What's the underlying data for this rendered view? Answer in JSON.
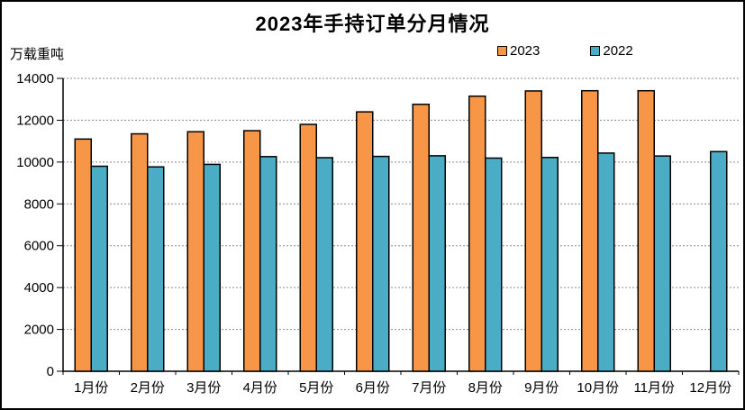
{
  "chart_data": {
    "type": "bar",
    "title": "2023年手持订单分月情况",
    "unit_label": "万载重吨",
    "categories": [
      "1月份",
      "2月份",
      "3月份",
      "4月份",
      "5月份",
      "6月份",
      "7月份",
      "8月份",
      "9月份",
      "10月份",
      "11月份",
      "12月份"
    ],
    "series": [
      {
        "name": "2023",
        "color": "#F79646",
        "values": [
          11100,
          11350,
          11450,
          11500,
          11800,
          12400,
          12760,
          13150,
          13400,
          13410,
          13410,
          null
        ]
      },
      {
        "name": "2022",
        "color": "#4BACC6",
        "values": [
          9800,
          9770,
          9890,
          10260,
          10210,
          10270,
          10300,
          10190,
          10220,
          10430,
          10290,
          10500
        ]
      }
    ],
    "ylim": [
      0,
      14000
    ],
    "yticks": [
      0,
      2000,
      4000,
      6000,
      8000,
      10000,
      12000,
      14000
    ],
    "grid": "horizontal-dotted",
    "legend_position": "top-right",
    "bar_border_color": "#000000",
    "gridline_color": "#8a8a8a",
    "axis_color": "#000000",
    "text_color": "#000000",
    "background": "#FFFFFF"
  }
}
